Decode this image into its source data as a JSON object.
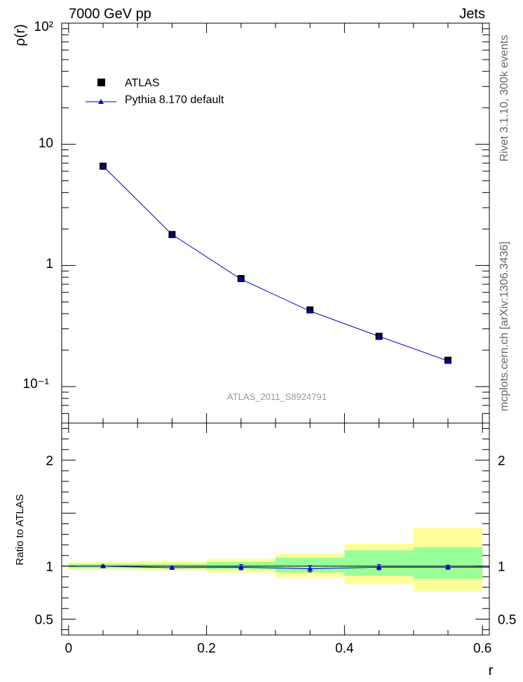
{
  "header": {
    "left": "7000 GeV pp",
    "right": "Jets"
  },
  "side_text": {
    "top": "Rivet 3.1.10,  300k events",
    "bottom": "mcplots.cern.ch [arXiv:1306.3436]"
  },
  "watermark": "ATLAS_2011_S8924791",
  "chart_data": [
    {
      "type": "scatter",
      "panel": "main",
      "ylabel": "ρ(r)",
      "yscale": "log",
      "xlim": [
        -0.01,
        0.61
      ],
      "ylim": [
        0.05,
        100
      ],
      "y_tick_labels": [
        "10⁻¹",
        "1",
        "10",
        "10²"
      ],
      "legend": {
        "placement": "top-left",
        "entries": [
          "ATLAS",
          "Pythia 8.170 default"
        ]
      },
      "series": [
        {
          "name": "ATLAS",
          "marker": "square",
          "color": "#000000",
          "x": [
            0.05,
            0.15,
            0.25,
            0.35,
            0.45,
            0.55
          ],
          "y": [
            6.6,
            1.8,
            0.78,
            0.43,
            0.26,
            0.165
          ]
        },
        {
          "name": "Pythia 8.170 default",
          "marker": "triangle",
          "line": true,
          "color": "#0000cc",
          "x": [
            0.05,
            0.15,
            0.25,
            0.35,
            0.45,
            0.55
          ],
          "y": [
            6.6,
            1.8,
            0.77,
            0.42,
            0.26,
            0.163
          ]
        }
      ]
    },
    {
      "type": "line",
      "panel": "ratio",
      "xlabel": "r",
      "ylabel": "Ratio to ATLAS",
      "xlim": [
        -0.01,
        0.61
      ],
      "ylim": [
        0.35,
        2.35
      ],
      "x_ticks": [
        0,
        0.2,
        0.4,
        0.6
      ],
      "x_tick_labels": [
        "0",
        "0.2",
        "0.4",
        "0.6"
      ],
      "y_ticks": [
        0.5,
        1,
        2
      ],
      "y_tick_labels": [
        "0.5",
        "1",
        "2"
      ],
      "bands": {
        "bin_edges": [
          0.0,
          0.1,
          0.2,
          0.3,
          0.4,
          0.5,
          0.6
        ],
        "yellow": [
          [
            0.97,
            1.04
          ],
          [
            0.96,
            1.05
          ],
          [
            0.94,
            1.07
          ],
          [
            0.89,
            1.12
          ],
          [
            0.83,
            1.21
          ],
          [
            0.76,
            1.36
          ]
        ],
        "green": [
          [
            0.98,
            1.02
          ],
          [
            0.98,
            1.02
          ],
          [
            0.97,
            1.04
          ],
          [
            0.94,
            1.08
          ],
          [
            0.91,
            1.15
          ],
          [
            0.88,
            1.18
          ]
        ],
        "yellow_color": "#ffff99",
        "green_color": "#99ff99"
      },
      "series": [
        {
          "name": "Pythia 8.170 default",
          "color": "#0000cc",
          "x": [
            0.05,
            0.15,
            0.25,
            0.35,
            0.45,
            0.55
          ],
          "y": [
            1.0,
            0.985,
            0.99,
            0.975,
            0.99,
            0.99
          ],
          "err": [
            0.01,
            0.01,
            0.025,
            0.03,
            0.025,
            0.02
          ]
        }
      ]
    }
  ]
}
